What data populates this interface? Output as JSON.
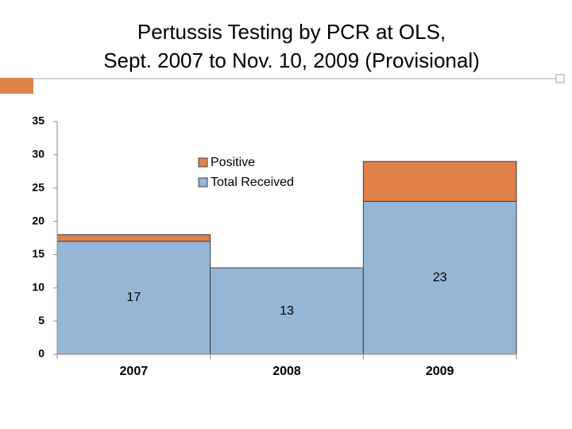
{
  "chart_data": {
    "type": "bar",
    "stacked": true,
    "title": [
      "Pertussis Testing by PCR at OLS,",
      "Sept. 2007 to Nov. 10, 2009 (Provisional)"
    ],
    "categories": [
      "2007",
      "2008",
      "2009"
    ],
    "series": [
      {
        "name": "Positive",
        "color": "#e0814a",
        "values": [
          1,
          0,
          6
        ]
      },
      {
        "name": "Total Received",
        "color": "#95b6d6",
        "values": [
          17,
          13,
          23
        ]
      }
    ],
    "ylim": [
      0,
      35
    ],
    "yticks": [
      0,
      5,
      10,
      15,
      20,
      25,
      30,
      35
    ],
    "grid": false
  }
}
